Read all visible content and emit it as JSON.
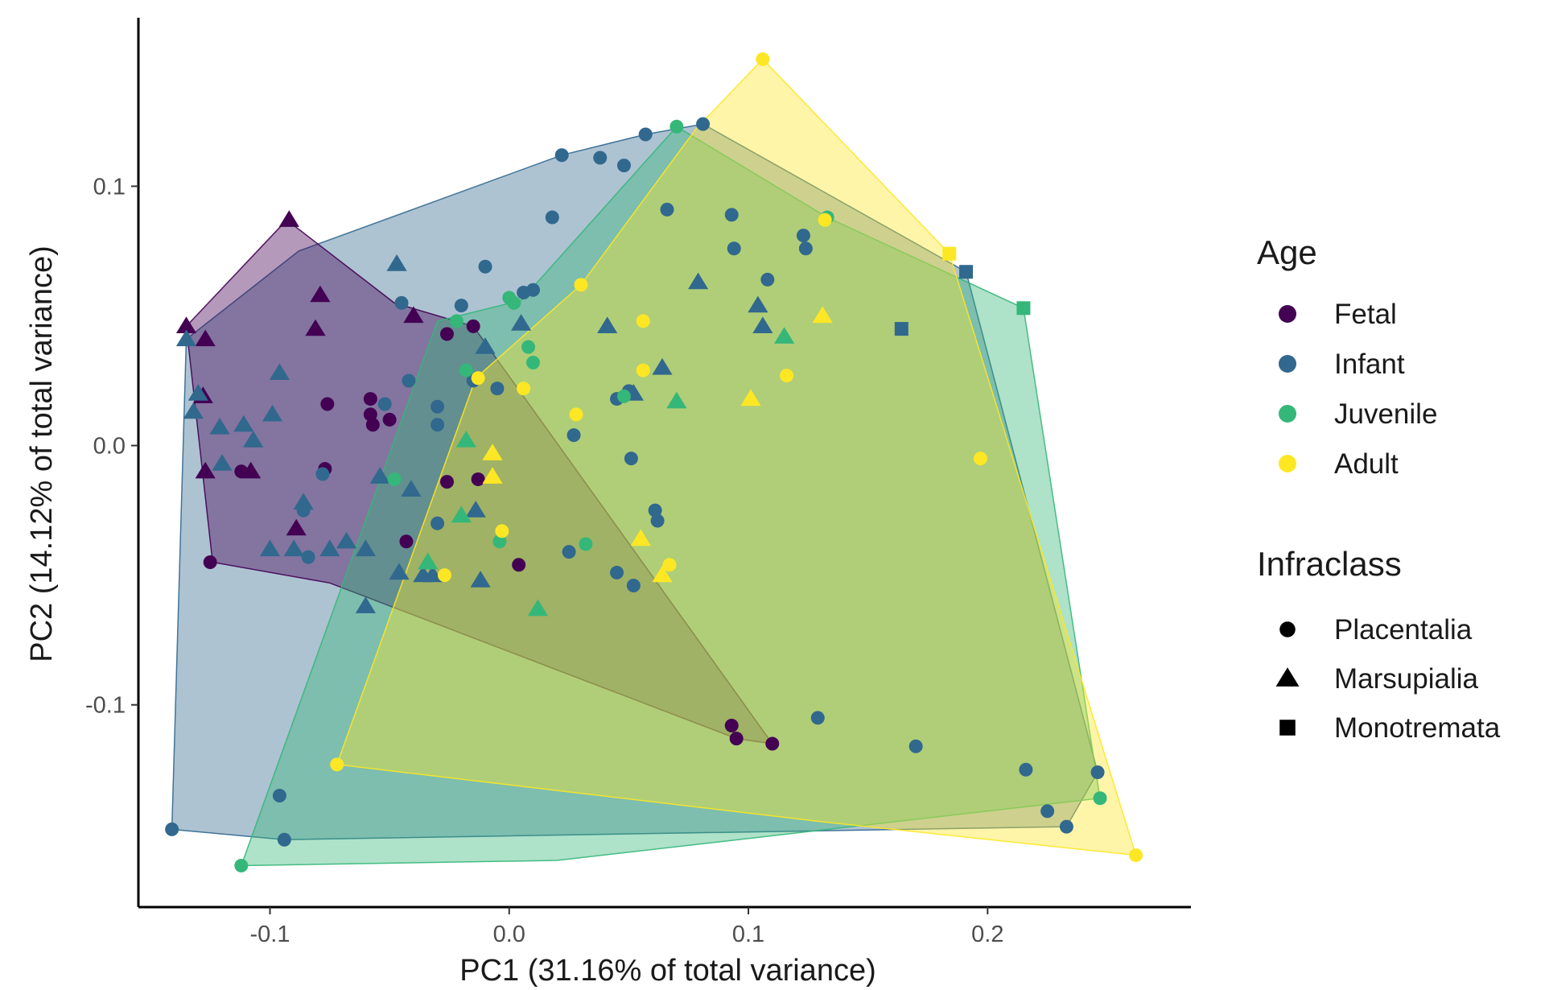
{
  "chart_data": {
    "type": "scatter",
    "title": "",
    "xlabel": "PC1 (31.16% of total variance)",
    "ylabel": "PC2 (14.12% of total variance)",
    "xlim": [
      -0.155,
      0.285
    ],
    "ylim": [
      -0.178,
      0.165
    ],
    "x_ticks": [
      -0.1,
      0.0,
      0.1,
      0.2
    ],
    "x_tick_labels": [
      "-0.1",
      "0.0",
      "0.1",
      "0.2"
    ],
    "y_ticks": [
      -0.1,
      0.0,
      0.1
    ],
    "y_tick_labels": [
      "-0.1",
      "0.0",
      "0.1"
    ],
    "grid": false,
    "legend_position": "right",
    "legend": {
      "age_title": "Age",
      "age_entries": [
        {
          "key": "Fetal",
          "label": "Fetal",
          "color": "#440154"
        },
        {
          "key": "Infant",
          "label": "Infant",
          "color": "#31688e"
        },
        {
          "key": "Juvenile",
          "label": "Juvenile",
          "color": "#35b779"
        },
        {
          "key": "Adult",
          "label": "Adult",
          "color": "#fde725"
        }
      ],
      "shape_title": "Infraclass",
      "shape_entries": [
        {
          "key": "circle",
          "label": "Placentalia"
        },
        {
          "key": "triangle",
          "label": "Marsupialia"
        },
        {
          "key": "square",
          "label": "Monotremata"
        }
      ]
    },
    "hulls": [
      {
        "group": "Infant",
        "opacity": 0.4,
        "points": [
          [
            -0.141,
            -0.148
          ],
          [
            -0.135,
            0.041
          ],
          [
            -0.088,
            0.075
          ],
          [
            0.022,
            0.112
          ],
          [
            0.057,
            0.12
          ],
          [
            0.081,
            0.124
          ],
          [
            0.191,
            0.067
          ],
          [
            0.246,
            -0.126
          ],
          [
            0.233,
            -0.147
          ],
          [
            -0.094,
            -0.152
          ]
        ]
      },
      {
        "group": "Fetal",
        "opacity": 0.4,
        "points": [
          [
            -0.124,
            -0.045
          ],
          [
            -0.135,
            0.046
          ],
          [
            -0.093,
            0.087
          ],
          [
            -0.048,
            0.055
          ],
          [
            -0.015,
            0.046
          ],
          [
            0.11,
            -0.115
          ],
          [
            0.095,
            -0.113
          ],
          [
            -0.075,
            -0.053
          ]
        ]
      },
      {
        "group": "Juvenile",
        "opacity": 0.4,
        "points": [
          [
            -0.112,
            -0.162
          ],
          [
            -0.03,
            0.048
          ],
          [
            0.005,
            0.056
          ],
          [
            0.07,
            0.123
          ],
          [
            0.133,
            0.088
          ],
          [
            0.215,
            0.053
          ],
          [
            0.247,
            -0.136
          ],
          [
            0.02,
            -0.16
          ]
        ]
      },
      {
        "group": "Adult",
        "opacity": 0.4,
        "points": [
          [
            -0.072,
            -0.123
          ],
          [
            -0.014,
            0.026
          ],
          [
            0.03,
            0.062
          ],
          [
            0.078,
            0.122
          ],
          [
            0.106,
            0.149
          ],
          [
            0.184,
            0.074
          ],
          [
            0.262,
            -0.158
          ],
          [
            0.13,
            -0.145
          ]
        ]
      }
    ],
    "series": [
      {
        "name": "Fetal",
        "color": "#440154",
        "points": [
          [
            -0.125,
            -0.045,
            "circle"
          ],
          [
            -0.112,
            -0.01,
            "circle"
          ],
          [
            -0.076,
            0.016,
            "circle"
          ],
          [
            -0.077,
            -0.009,
            "circle"
          ],
          [
            -0.058,
            0.018,
            "circle"
          ],
          [
            -0.058,
            0.012,
            "circle"
          ],
          [
            -0.057,
            0.008,
            "circle"
          ],
          [
            -0.05,
            0.01,
            "circle"
          ],
          [
            -0.043,
            -0.037,
            "circle"
          ],
          [
            -0.026,
            0.043,
            "circle"
          ],
          [
            -0.015,
            0.046,
            "circle"
          ],
          [
            -0.026,
            -0.014,
            "circle"
          ],
          [
            -0.013,
            -0.013,
            "circle"
          ],
          [
            0.004,
            -0.046,
            "circle"
          ],
          [
            0.093,
            -0.108,
            "circle"
          ],
          [
            0.095,
            -0.113,
            "circle"
          ],
          [
            0.11,
            -0.115,
            "circle"
          ],
          [
            -0.135,
            0.046,
            "triangle"
          ],
          [
            -0.127,
            0.041,
            "triangle"
          ],
          [
            -0.128,
            0.019,
            "triangle"
          ],
          [
            -0.127,
            -0.01,
            "triangle"
          ],
          [
            -0.108,
            -0.01,
            "triangle"
          ],
          [
            -0.092,
            0.087,
            "triangle"
          ],
          [
            -0.079,
            0.058,
            "triangle"
          ],
          [
            -0.089,
            -0.032,
            "triangle"
          ],
          [
            -0.081,
            0.045,
            "triangle"
          ],
          [
            -0.04,
            0.05,
            "triangle"
          ]
        ]
      },
      {
        "name": "Infant",
        "color": "#31688e",
        "points": [
          [
            -0.141,
            -0.148,
            "circle"
          ],
          [
            -0.096,
            -0.135,
            "circle"
          ],
          [
            -0.094,
            -0.152,
            "circle"
          ],
          [
            -0.084,
            -0.043,
            "circle"
          ],
          [
            -0.086,
            -0.025,
            "circle"
          ],
          [
            -0.078,
            -0.011,
            "circle"
          ],
          [
            -0.052,
            0.016,
            "circle"
          ],
          [
            -0.042,
            0.025,
            "circle"
          ],
          [
            -0.045,
            0.055,
            "circle"
          ],
          [
            -0.03,
            0.015,
            "circle"
          ],
          [
            -0.03,
            0.008,
            "circle"
          ],
          [
            -0.03,
            -0.03,
            "circle"
          ],
          [
            -0.02,
            0.054,
            "circle"
          ],
          [
            -0.015,
            0.025,
            "circle"
          ],
          [
            -0.01,
            0.069,
            "circle"
          ],
          [
            -0.005,
            0.022,
            "circle"
          ],
          [
            0.006,
            0.059,
            "circle"
          ],
          [
            0.01,
            0.06,
            "circle"
          ],
          [
            0.018,
            0.088,
            "circle"
          ],
          [
            0.022,
            0.112,
            "circle"
          ],
          [
            0.027,
            0.004,
            "circle"
          ],
          [
            0.038,
            0.111,
            "circle"
          ],
          [
            0.048,
            0.108,
            "circle"
          ],
          [
            0.045,
            0.018,
            "circle"
          ],
          [
            0.057,
            0.12,
            "circle"
          ],
          [
            0.066,
            0.091,
            "circle"
          ],
          [
            0.081,
            0.124,
            "circle"
          ],
          [
            0.05,
            0.021,
            "circle"
          ],
          [
            0.051,
            -0.005,
            "circle"
          ],
          [
            0.061,
            -0.025,
            "circle"
          ],
          [
            0.062,
            -0.029,
            "circle"
          ],
          [
            0.025,
            -0.041,
            "circle"
          ],
          [
            0.045,
            -0.049,
            "circle"
          ],
          [
            0.052,
            -0.054,
            "circle"
          ],
          [
            0.093,
            0.089,
            "circle"
          ],
          [
            0.094,
            0.076,
            "circle"
          ],
          [
            0.108,
            0.064,
            "circle"
          ],
          [
            0.123,
            0.081,
            "circle"
          ],
          [
            0.124,
            0.076,
            "circle"
          ],
          [
            0.129,
            -0.105,
            "circle"
          ],
          [
            0.17,
            -0.116,
            "circle"
          ],
          [
            0.216,
            -0.125,
            "circle"
          ],
          [
            0.225,
            -0.141,
            "circle"
          ],
          [
            0.233,
            -0.147,
            "circle"
          ],
          [
            0.246,
            -0.126,
            "circle"
          ],
          [
            -0.135,
            0.041,
            "triangle"
          ],
          [
            -0.13,
            0.02,
            "triangle"
          ],
          [
            -0.132,
            0.013,
            "triangle"
          ],
          [
            -0.121,
            0.007,
            "triangle"
          ],
          [
            -0.12,
            -0.007,
            "triangle"
          ],
          [
            -0.111,
            0.008,
            "triangle"
          ],
          [
            -0.107,
            0.002,
            "triangle"
          ],
          [
            -0.1,
            -0.04,
            "triangle"
          ],
          [
            -0.099,
            0.012,
            "triangle"
          ],
          [
            -0.09,
            -0.04,
            "triangle"
          ],
          [
            -0.086,
            -0.022,
            "triangle"
          ],
          [
            -0.075,
            -0.04,
            "triangle"
          ],
          [
            -0.068,
            -0.037,
            "triangle"
          ],
          [
            -0.06,
            -0.04,
            "triangle"
          ],
          [
            -0.06,
            -0.062,
            "triangle"
          ],
          [
            -0.054,
            -0.012,
            "triangle"
          ],
          [
            -0.047,
            0.07,
            "triangle"
          ],
          [
            -0.046,
            -0.049,
            "triangle"
          ],
          [
            -0.041,
            -0.017,
            "triangle"
          ],
          [
            -0.036,
            -0.05,
            "triangle"
          ],
          [
            -0.032,
            -0.05,
            "triangle"
          ],
          [
            -0.014,
            -0.025,
            "triangle"
          ],
          [
            -0.01,
            0.038,
            "triangle"
          ],
          [
            -0.012,
            -0.052,
            "triangle"
          ],
          [
            0.005,
            0.047,
            "triangle"
          ],
          [
            0.041,
            0.046,
            "triangle"
          ],
          [
            0.052,
            0.02,
            "triangle"
          ],
          [
            0.064,
            0.03,
            "triangle"
          ],
          [
            0.079,
            0.063,
            "triangle"
          ],
          [
            0.104,
            0.054,
            "triangle"
          ],
          [
            0.106,
            0.046,
            "triangle"
          ],
          [
            -0.096,
            0.028,
            "triangle"
          ],
          [
            0.164,
            0.045,
            "square"
          ],
          [
            0.191,
            0.067,
            "square"
          ]
        ]
      },
      {
        "name": "Juvenile",
        "color": "#35b779",
        "points": [
          [
            -0.112,
            -0.162,
            "circle"
          ],
          [
            -0.048,
            -0.013,
            "circle"
          ],
          [
            -0.022,
            0.048,
            "circle"
          ],
          [
            -0.018,
            0.029,
            "circle"
          ],
          [
            0.002,
            0.055,
            "circle"
          ],
          [
            0.008,
            0.038,
            "circle"
          ],
          [
            0.01,
            0.032,
            "circle"
          ],
          [
            0.0,
            0.057,
            "circle"
          ],
          [
            0.032,
            -0.038,
            "circle"
          ],
          [
            0.048,
            0.019,
            "circle"
          ],
          [
            0.07,
            0.123,
            "circle"
          ],
          [
            0.133,
            0.088,
            "circle"
          ],
          [
            -0.004,
            -0.037,
            "circle"
          ],
          [
            0.247,
            -0.136,
            "circle"
          ],
          [
            -0.034,
            -0.045,
            "triangle"
          ],
          [
            -0.018,
            0.002,
            "triangle"
          ],
          [
            -0.02,
            -0.027,
            "triangle"
          ],
          [
            0.012,
            -0.063,
            "triangle"
          ],
          [
            0.07,
            0.017,
            "triangle"
          ],
          [
            0.115,
            0.042,
            "triangle"
          ],
          [
            0.215,
            0.053,
            "square"
          ]
        ]
      },
      {
        "name": "Adult",
        "color": "#fde725",
        "points": [
          [
            -0.072,
            -0.123,
            "circle"
          ],
          [
            -0.027,
            -0.05,
            "circle"
          ],
          [
            -0.013,
            0.026,
            "circle"
          ],
          [
            -0.003,
            -0.033,
            "circle"
          ],
          [
            0.006,
            0.022,
            "circle"
          ],
          [
            0.028,
            0.012,
            "circle"
          ],
          [
            0.03,
            0.062,
            "circle"
          ],
          [
            0.056,
            0.048,
            "circle"
          ],
          [
            0.056,
            0.029,
            "circle"
          ],
          [
            0.067,
            -0.046,
            "circle"
          ],
          [
            0.106,
            0.149,
            "circle"
          ],
          [
            0.116,
            0.027,
            "circle"
          ],
          [
            0.132,
            0.087,
            "circle"
          ],
          [
            0.197,
            -0.005,
            "circle"
          ],
          [
            0.262,
            -0.158,
            "circle"
          ],
          [
            -0.007,
            -0.003,
            "triangle"
          ],
          [
            -0.007,
            -0.012,
            "triangle"
          ],
          [
            0.055,
            -0.036,
            "triangle"
          ],
          [
            0.064,
            -0.05,
            "triangle"
          ],
          [
            0.101,
            0.018,
            "triangle"
          ],
          [
            0.131,
            0.05,
            "triangle"
          ],
          [
            0.184,
            0.074,
            "square"
          ]
        ]
      }
    ]
  }
}
